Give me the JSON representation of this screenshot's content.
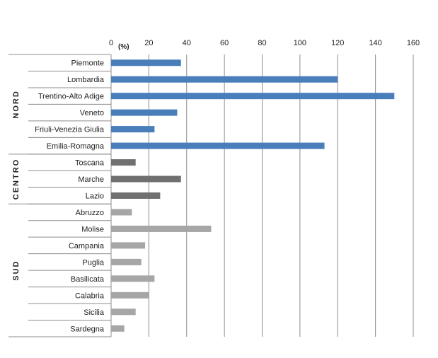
{
  "chart_data": {
    "type": "bar",
    "orientation": "horizontal",
    "unit_label": "(%)",
    "xlim": [
      0,
      160
    ],
    "x_ticks": [
      0,
      20,
      40,
      60,
      80,
      100,
      120,
      140,
      160
    ],
    "axis_position": "top",
    "grid": true,
    "categories": [
      "Piemonte",
      "Lombardia",
      "Trentino-Alto Adige",
      "Veneto",
      "Friuli-Venezia Giulia",
      "Emilia-Romagna",
      "Toscana",
      "Marche",
      "Lazio",
      "Abruzzo",
      "Molise",
      "Campania",
      "Puglia",
      "Basilicata",
      "Calabria",
      "Sicilia",
      "Sardegna"
    ],
    "values": [
      37,
      120,
      150,
      35,
      23,
      113,
      13,
      37,
      26,
      11,
      53,
      18,
      16,
      23,
      20,
      13,
      7
    ],
    "groups": [
      {
        "name": "NORD",
        "count": 6,
        "color": "#4a7ebb"
      },
      {
        "name": "CENTRO",
        "count": 3,
        "color": "#707070"
      },
      {
        "name": "SUD",
        "count": 8,
        "color": "#a6a6a6"
      }
    ]
  }
}
